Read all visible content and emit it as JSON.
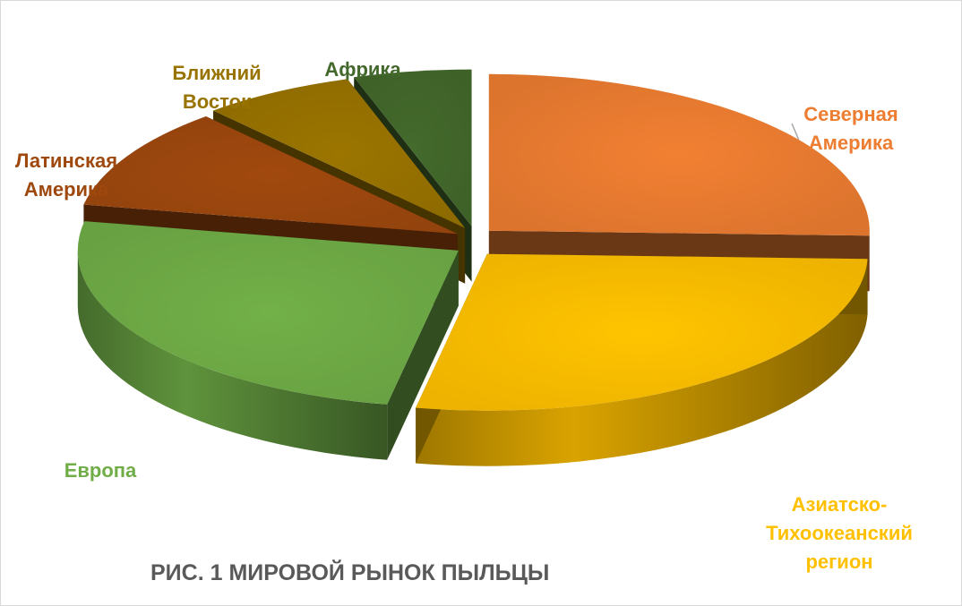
{
  "chart_data": {
    "type": "pie",
    "style": "3d-exploded",
    "title": "РИС. 1 МИРОВОЙ РЫНОК ПЫЛЬЦЫ",
    "slices": [
      {
        "label": "Северная\nАмерика",
        "value": 25.5,
        "color": "#ED7D31"
      },
      {
        "label": "Азиатско-\nТихоокеанский\nрегион",
        "value": 27.5,
        "color": "#FFC000"
      },
      {
        "label": "Европа",
        "value": 25.0,
        "color": "#70AD47"
      },
      {
        "label": "Латинская\nАмерика",
        "value": 10.5,
        "color": "#9E480E"
      },
      {
        "label": "Ближний\nВосток",
        "value": 6.5,
        "color": "#997300"
      },
      {
        "label": "Африка",
        "value": 5.0,
        "color": "#43682B"
      }
    ]
  }
}
